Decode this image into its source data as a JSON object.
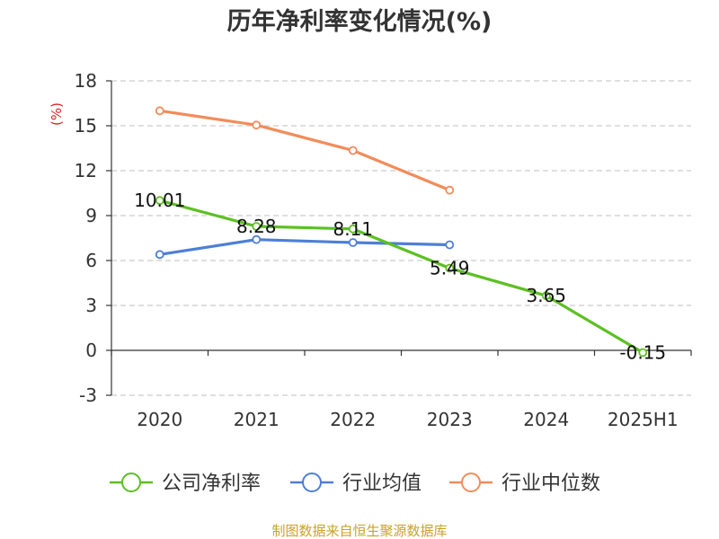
{
  "source_note": "制图数据来自恒生聚源数据库",
  "colors": {
    "ylabel": "#e02020",
    "footer": "#c9a227",
    "grid": "#cccccc",
    "axis": "#333333"
  },
  "chart_data": {
    "type": "line",
    "title": "历年净利率变化情况(%)",
    "ylabel": "(%)",
    "xlabel": "",
    "categories": [
      "2020",
      "2021",
      "2022",
      "2023",
      "2024",
      "2025H1"
    ],
    "ylim": [
      -3,
      18
    ],
    "yticks": [
      -3,
      0,
      3,
      6,
      9,
      12,
      15,
      18
    ],
    "grid": true,
    "legend_position": "bottom",
    "series": [
      {
        "name": "公司净利率",
        "color": "#5cc023",
        "values": [
          10.01,
          8.28,
          8.11,
          5.49,
          3.65,
          -0.15
        ],
        "labels": [
          "10.01",
          "8.28",
          "8.11",
          "5.49",
          "3.65",
          "-0.15"
        ]
      },
      {
        "name": "行业均值",
        "color": "#4e7fd6",
        "values": [
          6.4,
          7.4,
          7.2,
          7.05,
          null,
          null
        ],
        "labels": null
      },
      {
        "name": "行业中位数",
        "color": "#f28c5a",
        "values": [
          16.0,
          15.05,
          13.35,
          10.7,
          null,
          null
        ],
        "labels": null
      }
    ]
  }
}
